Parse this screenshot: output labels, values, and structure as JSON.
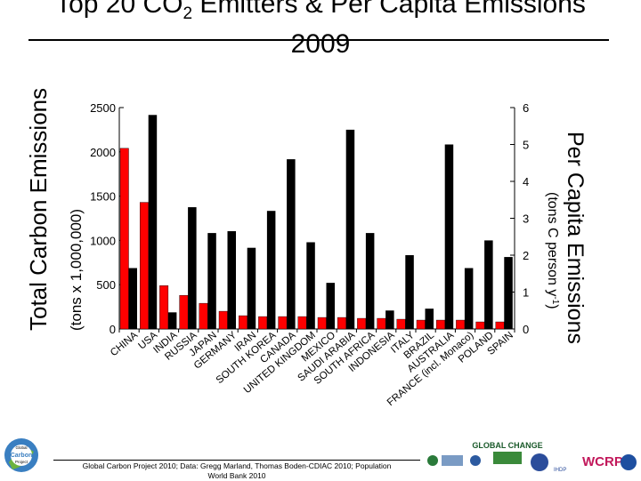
{
  "title": {
    "line1_prefix": "Top 20 CO",
    "line1_sub": "2",
    "line1_suffix": " Emitters & Per Capita Emissions",
    "line2": "2009"
  },
  "footer": {
    "credit_line1": "Global Carbon Project 2010; Data: Gregg Marland, Thomas Boden-CDIAC 2010; Population",
    "credit_line2": "World Bank 2010"
  },
  "logos": {
    "gcp_line1": "Global",
    "gcp_line2": "Carbon",
    "gcp_line3": "Project",
    "global_change": "GLOBAL CHANGE",
    "wcrp": "WCRP",
    "ihdp": "IHDP"
  },
  "colors": {
    "total_bar": "#ff0000",
    "per_capita_bar": "#000000"
  },
  "chart_data": {
    "type": "bar",
    "categories": [
      "CHINA",
      "USA",
      "INDIA",
      "RUSSIA",
      "JAPAN",
      "GERMANY",
      "IRAN",
      "SOUTH KOREA",
      "CANADA",
      "UNITED KINGDOM",
      "MEXICO",
      "SAUDI ARABIA",
      "SOUTH AFRICA",
      "INDONESIA",
      "ITALY",
      "BRAZIL",
      "AUSTRALIA",
      "FRANCE (incl. Monaco)",
      "POLAND",
      "SPAIN"
    ],
    "series": [
      {
        "axis": "left",
        "values": [
          2040,
          1430,
          490,
          380,
          290,
          200,
          150,
          140,
          140,
          140,
          130,
          130,
          120,
          120,
          110,
          100,
          100,
          100,
          80,
          80
        ]
      },
      {
        "axis": "right",
        "values": [
          1.65,
          5.8,
          0.45,
          3.3,
          2.6,
          2.65,
          2.2,
          3.2,
          4.6,
          2.35,
          1.25,
          5.4,
          2.6,
          0.5,
          2.0,
          0.55,
          5.0,
          1.65,
          2.4,
          1.95
        ]
      }
    ],
    "left_axis": {
      "label_main": "Total Carbon Emissions",
      "label_unit": "(tons x 1,000,000)",
      "ylim": [
        0,
        2500
      ],
      "ticks": [
        "0",
        "500",
        "1000",
        "1500",
        "2000",
        "2500"
      ]
    },
    "right_axis": {
      "label_main": "Per Capita Emissions",
      "label_unit": "(tons C person",
      "label_exp": "-1",
      "label_close": " y",
      "label_end": ")",
      "ylim": [
        0,
        6
      ],
      "ticks": [
        "0",
        "1",
        "2",
        "3",
        "4",
        "5",
        "6"
      ]
    },
    "grid": false,
    "legend": "none"
  }
}
